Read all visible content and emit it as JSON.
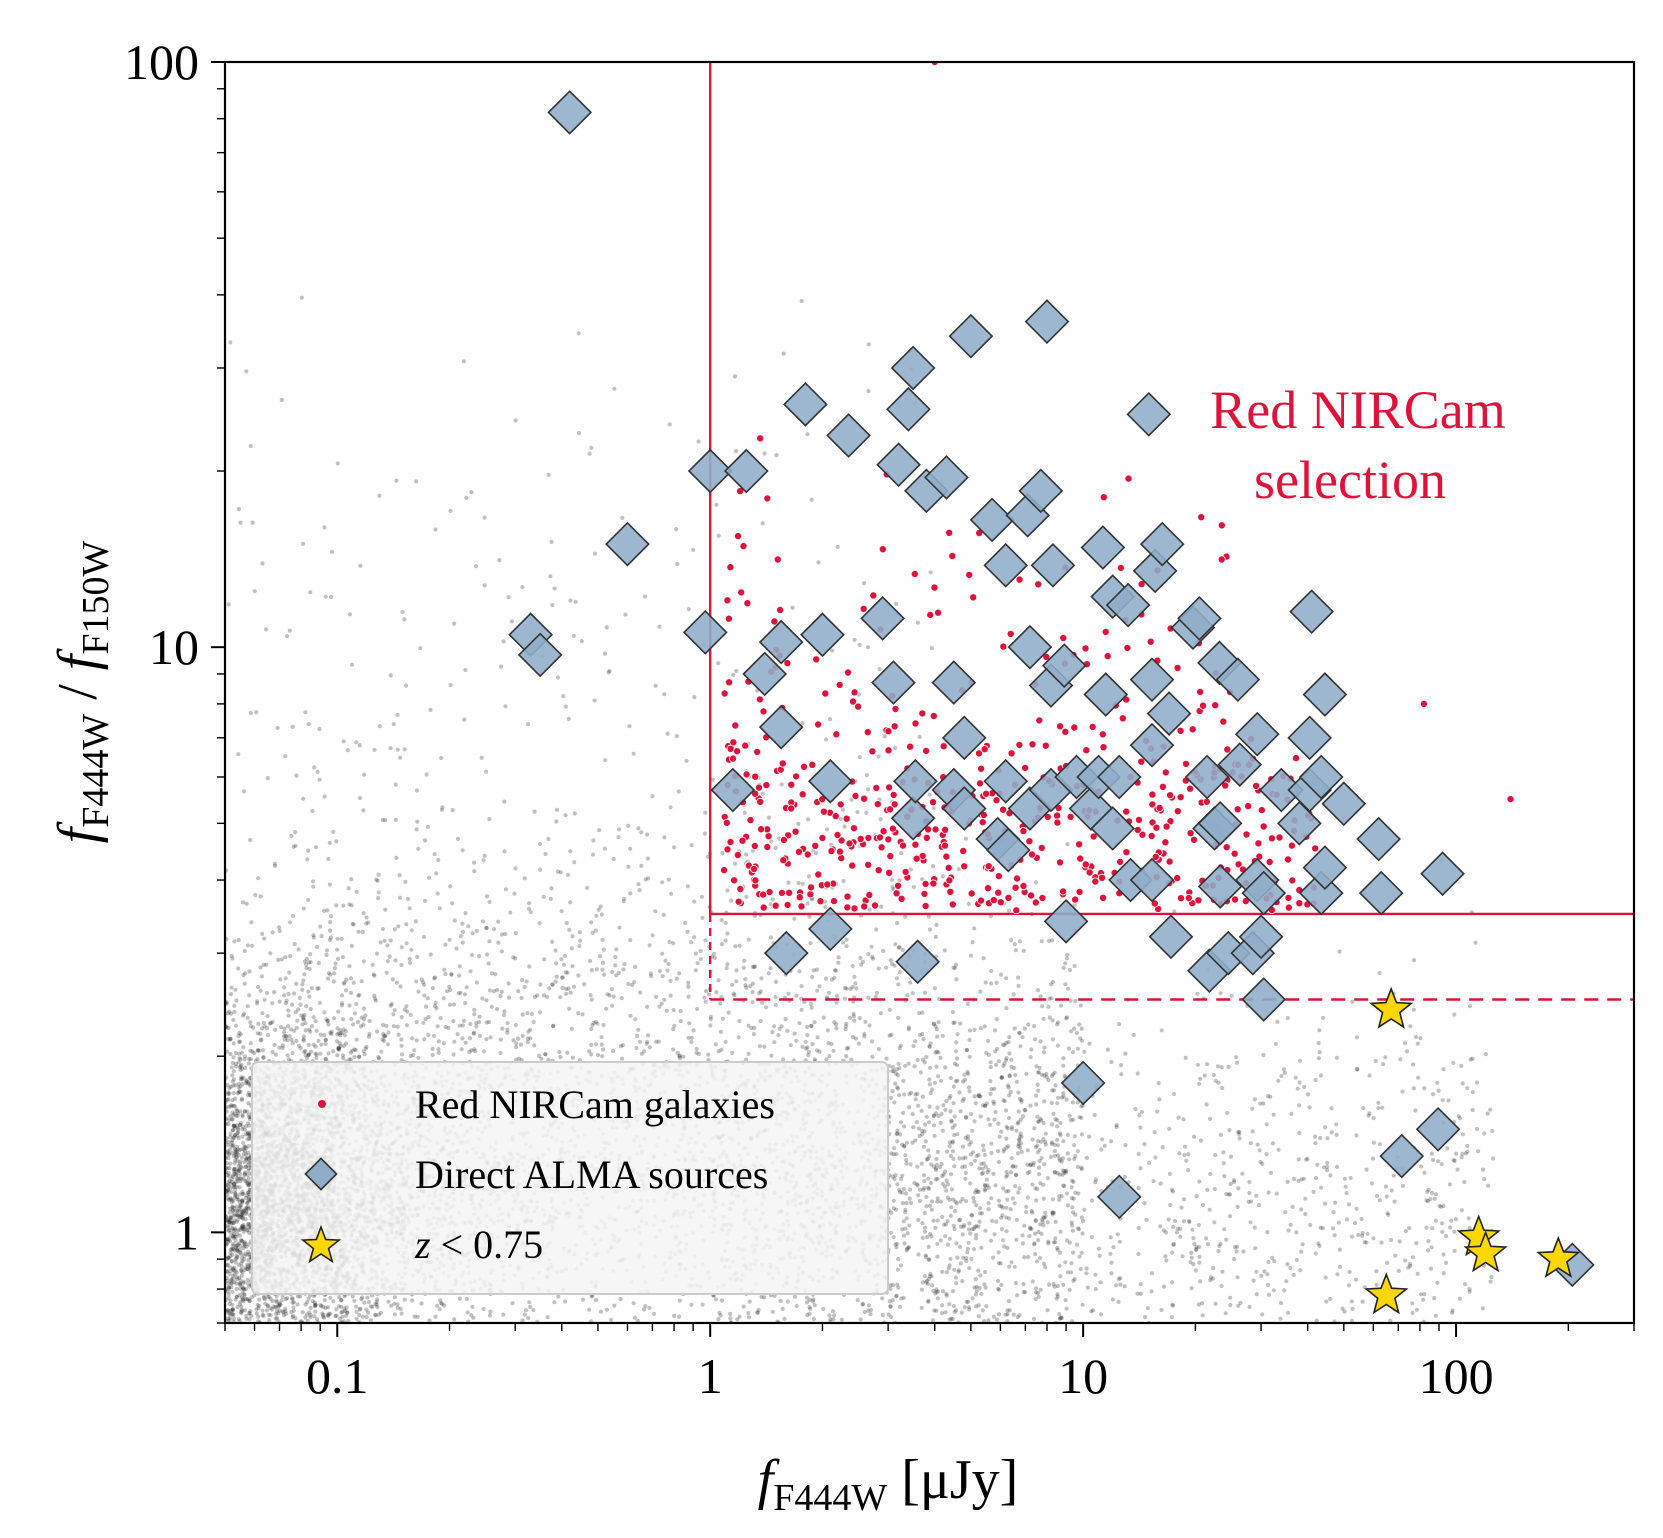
{
  "chart_data": {
    "type": "scatter",
    "xscale": "log",
    "yscale": "log",
    "xlim": [
      0.05,
      300
    ],
    "ylim": [
      0.7,
      100
    ],
    "x_ticks": [
      0.1,
      1,
      10,
      100
    ],
    "x_tick_labels": [
      "0.1",
      "1",
      "10",
      "100"
    ],
    "y_ticks": [
      1,
      10,
      100
    ],
    "y_tick_labels": [
      "1",
      "10",
      "100"
    ],
    "xlabel": {
      "main": "f",
      "sub": "F444W",
      "rest": " [μJy]"
    },
    "ylabel": {
      "num": "f",
      "num_sub": "F444W",
      "sep": " / ",
      "den": "f",
      "den_sub": "F150W"
    },
    "selection": {
      "flux_min": 1,
      "ratio_min_solid": 3.5,
      "ratio_min_dashed": 2.5,
      "color": "#dc143c",
      "label_line1": "Red NIRCam",
      "label_line2": "selection"
    },
    "legend": {
      "position": "lower-left",
      "entries": [
        {
          "label": "Red NIRCam galaxies",
          "marker": "dot",
          "color": "#dc143c"
        },
        {
          "label": "Direct ALMA sources",
          "marker": "diamond",
          "color": "#8fadc9"
        },
        {
          "label": "z < 0.75",
          "label_var": "z",
          "label_rest": " < 0.75",
          "marker": "star",
          "color": "#ffd700"
        }
      ]
    },
    "background_population": {
      "name": "All NIRCam galaxies",
      "color": "#000000",
      "note": "dense grey/black cloud of field galaxies"
    },
    "series": [
      {
        "name": "Direct ALMA sources",
        "marker": "diamond",
        "points": [
          [
            0.42,
            82
          ],
          [
            0.6,
            15
          ],
          [
            0.33,
            10.5
          ],
          [
            0.35,
            9.7
          ],
          [
            0.97,
            10.6
          ],
          [
            1.0,
            20
          ],
          [
            1.25,
            20
          ],
          [
            1.15,
            5.7
          ],
          [
            1.4,
            9
          ],
          [
            1.55,
            10.2
          ],
          [
            1.55,
            7.3
          ],
          [
            1.6,
            3.0
          ],
          [
            1.8,
            26
          ],
          [
            2.0,
            10.5
          ],
          [
            2.1,
            5.9
          ],
          [
            2.1,
            3.3
          ],
          [
            2.35,
            23
          ],
          [
            2.9,
            11.2
          ],
          [
            3.1,
            8.7
          ],
          [
            3.2,
            20.5
          ],
          [
            3.4,
            25.5
          ],
          [
            3.5,
            30
          ],
          [
            3.5,
            5.1
          ],
          [
            3.55,
            5.9
          ],
          [
            3.6,
            2.9
          ],
          [
            3.8,
            18.5
          ],
          [
            4.3,
            19.5
          ],
          [
            4.5,
            8.7
          ],
          [
            4.5,
            5.7
          ],
          [
            4.8,
            7.0
          ],
          [
            4.8,
            5.3
          ],
          [
            5.0,
            34
          ],
          [
            5.7,
            16.5
          ],
          [
            5.9,
            4.7
          ],
          [
            6.2,
            13.8
          ],
          [
            6.2,
            5.9
          ],
          [
            6.3,
            4.5
          ],
          [
            7.1,
            16.8
          ],
          [
            7.2,
            10.0
          ],
          [
            7.2,
            5.3
          ],
          [
            7.7,
            18.5
          ],
          [
            8.0,
            36
          ],
          [
            8.2,
            8.6
          ],
          [
            8.2,
            5.7
          ],
          [
            8.3,
            13.8
          ],
          [
            8.9,
            9.3
          ],
          [
            9.0,
            3.4
          ],
          [
            9.6,
            6.0
          ],
          [
            10.5,
            5.3
          ],
          [
            11.0,
            6.0
          ],
          [
            11.3,
            14.8
          ],
          [
            11.5,
            8.3
          ],
          [
            12.0,
            12.2
          ],
          [
            12.0,
            4.9
          ],
          [
            12.5,
            6.0
          ],
          [
            13.2,
            11.8
          ],
          [
            13.4,
            4.0
          ],
          [
            15.0,
            25
          ],
          [
            15.3,
            8.8
          ],
          [
            15.3,
            4.0
          ],
          [
            15.3,
            6.8
          ],
          [
            15.6,
            13.5
          ],
          [
            16.3,
            15
          ],
          [
            17.0,
            7.7
          ],
          [
            17.2,
            3.2
          ],
          [
            19.7,
            10.8
          ],
          [
            20.5,
            11.2
          ],
          [
            21.5,
            6.0
          ],
          [
            21.8,
            2.8
          ],
          [
            22.5,
            4.9
          ],
          [
            23.2,
            9.4
          ],
          [
            23.3,
            5.0
          ],
          [
            23.3,
            3.9
          ],
          [
            24.5,
            3.0
          ],
          [
            26.0,
            8.8
          ],
          [
            26.3,
            6.3
          ],
          [
            28.5,
            3.0
          ],
          [
            29.3,
            7.1
          ],
          [
            29.3,
            4.0
          ],
          [
            30.5,
            3.8
          ],
          [
            30.0,
            3.2
          ],
          [
            30.5,
            2.5
          ],
          [
            34.0,
            5.7
          ],
          [
            38.0,
            5.0
          ],
          [
            40.5,
            7.0
          ],
          [
            41.0,
            11.5
          ],
          [
            40.5,
            5.7
          ],
          [
            43.5,
            6.0
          ],
          [
            43.5,
            3.8
          ],
          [
            44.5,
            4.2
          ],
          [
            44.5,
            8.3
          ],
          [
            50.0,
            5.4
          ],
          [
            62.0,
            4.7
          ],
          [
            63.0,
            3.8
          ],
          [
            92.0,
            4.1
          ],
          [
            10.0,
            1.8
          ],
          [
            12.5,
            1.15
          ],
          [
            71.5,
            1.35
          ],
          [
            89.5,
            1.5
          ],
          [
            205.0,
            0.88
          ]
        ]
      },
      {
        "name": "z < 0.75",
        "marker": "star",
        "points": [
          [
            67.0,
            2.4
          ],
          [
            65.0,
            0.78
          ],
          [
            115.0,
            0.98
          ],
          [
            120.0,
            0.92
          ],
          [
            188.0,
            0.9
          ]
        ]
      }
    ]
  }
}
